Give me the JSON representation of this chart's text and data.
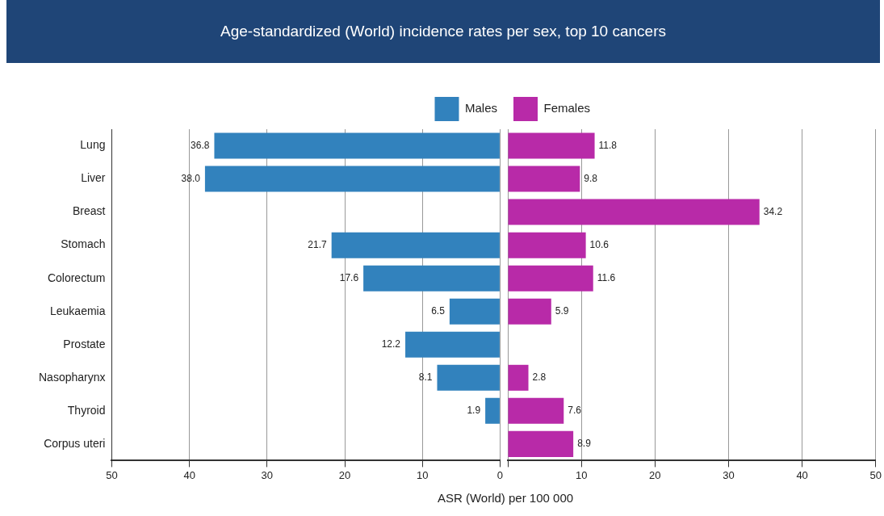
{
  "chart_data": [
    {
      "type": "bar",
      "orientation": "horizontal",
      "title": "Age-standardized (World) incidence rates per sex, top 10 cancers",
      "xlabel": "ASR (World) per 100 000",
      "categories": [
        "Lung",
        "Liver",
        "Breast",
        "Stomach",
        "Colorectum",
        "Leukaemia",
        "Prostate",
        "Nasopharynx",
        "Thyroid",
        "Corpus uteri"
      ],
      "series": [
        {
          "name": "Males",
          "color": "#3282bd",
          "values": [
            36.8,
            38.0,
            null,
            21.7,
            17.6,
            6.5,
            12.2,
            8.1,
            1.9,
            null
          ],
          "value_labels": [
            "36.8",
            "38.0",
            null,
            "21.7",
            "17.6",
            "6.5",
            "12.2",
            "8.1",
            "1.9",
            null
          ]
        }
      ],
      "xlim": [
        50,
        0
      ],
      "xticks": [
        50,
        40,
        30,
        20,
        10,
        0
      ],
      "grid": "x",
      "legend": "top right"
    },
    {
      "type": "bar",
      "orientation": "horizontal",
      "categories": [
        null,
        null,
        null,
        null,
        null,
        null,
        null,
        null,
        null,
        null
      ],
      "series": [
        {
          "name": "Females",
          "color": "#b82aa8",
          "values": [
            11.8,
            9.8,
            34.2,
            10.6,
            11.6,
            5.9,
            null,
            2.8,
            7.6,
            8.9
          ],
          "value_labels": [
            "11.8",
            "9.8",
            "34.2",
            "10.6",
            "11.6",
            "5.9",
            null,
            "2.8",
            "7.6",
            "8.9"
          ]
        }
      ],
      "xlim": [
        0,
        50
      ],
      "xticks": [
        {
          "value": 0,
          "label": null
        },
        10,
        20,
        30,
        40,
        50
      ],
      "grid": "x",
      "legend": "top left",
      "tick_labels": "x"
    }
  ]
}
